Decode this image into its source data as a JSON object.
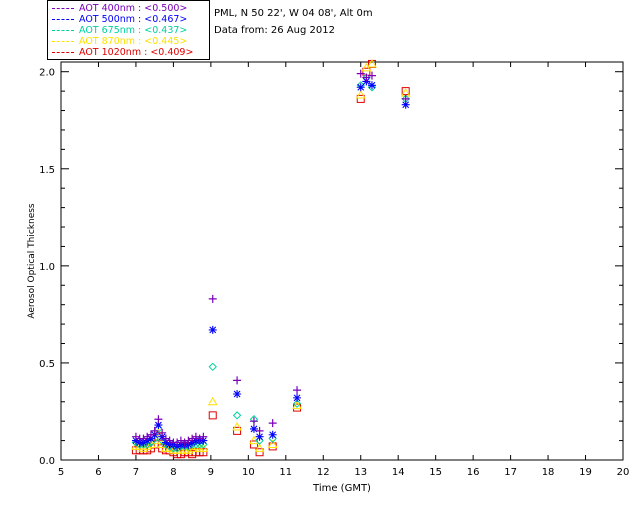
{
  "header": {
    "site": "PML, N 50 22', W 04 08', Alt 0m",
    "date": "Data from: 26 Aug 2012"
  },
  "legend": [
    {
      "label": "AOT  400nm : <0.500>",
      "color": "#7a00b8"
    },
    {
      "label": "AOT  500nm : <0.467>",
      "color": "#0000ff"
    },
    {
      "label": "AOT  675nm : <0.437>",
      "color": "#00d0a0"
    },
    {
      "label": "AOT  870nm : <0.445>",
      "color": "#ffe000"
    },
    {
      "label": "AOT 1020nm : <0.409>",
      "color": "#e00000"
    }
  ],
  "chart_data": {
    "type": "scatter",
    "xlabel": "Time (GMT)",
    "ylabel": "Aerosol Optical Thickness",
    "xlim": [
      5,
      20
    ],
    "ylim": [
      0,
      2.05
    ],
    "xticks": [
      5,
      6,
      7,
      8,
      9,
      10,
      11,
      12,
      13,
      14,
      15,
      16,
      17,
      18,
      19,
      20
    ],
    "yticks": [
      0.0,
      0.5,
      1.0,
      1.5,
      2.0
    ],
    "ytick_labels": [
      "0.0",
      "0.5",
      "1.0",
      "1.5",
      "2.0"
    ],
    "series": [
      {
        "name": "AOT 400nm",
        "marker": "plus",
        "color": "#7a00b8",
        "x": [
          7.0,
          7.1,
          7.2,
          7.3,
          7.4,
          7.5,
          7.6,
          7.7,
          7.8,
          7.9,
          8.0,
          8.1,
          8.2,
          8.3,
          8.4,
          8.5,
          8.6,
          8.7,
          8.8,
          9.05,
          9.7,
          10.15,
          10.3,
          10.65,
          11.3,
          13.0,
          13.15,
          13.3,
          14.2
        ],
        "y": [
          0.12,
          0.11,
          0.11,
          0.12,
          0.13,
          0.15,
          0.21,
          0.14,
          0.11,
          0.1,
          0.09,
          0.09,
          0.1,
          0.09,
          0.1,
          0.11,
          0.12,
          0.11,
          0.12,
          0.83,
          0.41,
          0.2,
          0.15,
          0.19,
          0.36,
          1.99,
          1.97,
          1.98,
          1.86
        ]
      },
      {
        "name": "AOT 500nm",
        "marker": "star",
        "color": "#0000ff",
        "x": [
          7.0,
          7.1,
          7.2,
          7.3,
          7.4,
          7.5,
          7.6,
          7.7,
          7.8,
          7.9,
          8.0,
          8.1,
          8.2,
          8.3,
          8.4,
          8.5,
          8.6,
          8.7,
          8.8,
          9.05,
          9.7,
          10.15,
          10.3,
          10.65,
          11.3,
          13.0,
          13.15,
          13.3,
          14.2
        ],
        "y": [
          0.1,
          0.09,
          0.09,
          0.1,
          0.11,
          0.13,
          0.18,
          0.12,
          0.09,
          0.08,
          0.08,
          0.07,
          0.08,
          0.08,
          0.08,
          0.09,
          0.1,
          0.1,
          0.1,
          0.67,
          0.34,
          0.16,
          0.12,
          0.13,
          0.32,
          1.92,
          1.95,
          1.93,
          1.83
        ]
      },
      {
        "name": "AOT 675nm",
        "marker": "diamond",
        "color": "#00d0a0",
        "x": [
          7.0,
          7.1,
          7.2,
          7.3,
          7.4,
          7.5,
          7.6,
          7.7,
          7.8,
          7.9,
          8.0,
          8.1,
          8.2,
          8.3,
          8.4,
          8.5,
          8.6,
          8.7,
          8.8,
          9.05,
          9.7,
          10.15,
          10.3,
          10.65,
          11.3,
          13.0,
          13.15,
          13.3,
          14.2
        ],
        "y": [
          0.09,
          0.08,
          0.08,
          0.08,
          0.09,
          0.11,
          0.16,
          0.1,
          0.08,
          0.07,
          0.06,
          0.06,
          0.07,
          0.07,
          0.07,
          0.08,
          0.08,
          0.08,
          0.08,
          0.48,
          0.23,
          0.21,
          0.1,
          0.11,
          0.29,
          1.93,
          1.97,
          1.92,
          1.86
        ]
      },
      {
        "name": "AOT 870nm",
        "marker": "triangle",
        "color": "#ffe000",
        "x": [
          7.0,
          7.1,
          7.2,
          7.3,
          7.4,
          7.5,
          7.6,
          7.7,
          7.8,
          7.9,
          8.0,
          8.1,
          8.2,
          8.3,
          8.4,
          8.5,
          8.6,
          8.7,
          8.8,
          9.05,
          9.7,
          10.15,
          10.3,
          10.65,
          11.3,
          13.0,
          13.15,
          13.3,
          14.2
        ],
        "y": [
          0.07,
          0.07,
          0.06,
          0.07,
          0.08,
          0.1,
          0.14,
          0.08,
          0.06,
          0.06,
          0.05,
          0.05,
          0.05,
          0.05,
          0.05,
          0.06,
          0.07,
          0.06,
          0.06,
          0.3,
          0.17,
          0.1,
          0.06,
          0.08,
          0.28,
          1.88,
          2.02,
          2.04,
          1.89
        ]
      },
      {
        "name": "AOT 1020nm",
        "marker": "square",
        "color": "#e00000",
        "x": [
          7.0,
          7.1,
          7.2,
          7.3,
          7.4,
          7.5,
          7.6,
          7.7,
          7.8,
          7.9,
          8.0,
          8.1,
          8.2,
          8.3,
          8.4,
          8.5,
          8.6,
          8.7,
          8.8,
          9.05,
          9.7,
          10.15,
          10.3,
          10.65,
          11.3,
          13.0,
          13.15,
          13.3,
          14.2
        ],
        "y": [
          0.05,
          0.05,
          0.05,
          0.05,
          0.06,
          0.08,
          0.12,
          0.06,
          0.05,
          0.05,
          0.04,
          0.03,
          0.03,
          0.04,
          0.04,
          0.03,
          0.04,
          0.04,
          0.04,
          0.23,
          0.15,
          0.08,
          0.04,
          0.07,
          0.27,
          1.86,
          2.0,
          2.04,
          1.9
        ]
      }
    ]
  }
}
